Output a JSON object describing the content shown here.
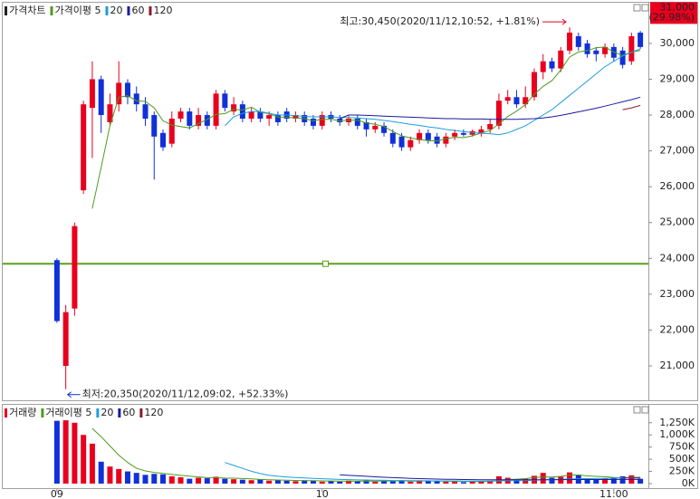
{
  "chart_data": [
    {
      "type": "candlestick",
      "title": "가격차트",
      "title_color": "#222222",
      "categories": [
        "09",
        null,
        null,
        null,
        null,
        null,
        null,
        null,
        null,
        null,
        null,
        null,
        null,
        null,
        null,
        null,
        null,
        null,
        null,
        null,
        null,
        null,
        null,
        null,
        null,
        null,
        null,
        null,
        null,
        null,
        "10",
        null,
        null,
        null,
        null,
        null,
        null,
        null,
        null,
        null,
        null,
        null,
        null,
        null,
        null,
        null,
        null,
        null,
        null,
        null,
        null,
        null,
        null,
        null,
        null,
        null,
        null,
        null,
        null,
        null,
        null,
        null,
        null,
        "11:00",
        null,
        null,
        null
      ],
      "open": [
        23950,
        21000,
        22600,
        25900,
        28200,
        29000,
        27800,
        28300,
        28900,
        28600,
        28300,
        28000,
        27500,
        27200,
        27900,
        28100,
        27700,
        28000,
        27700,
        28600,
        28100,
        28300,
        27900,
        28100,
        27900,
        28000,
        28100,
        27900,
        28000,
        27900,
        27700,
        28000,
        27900,
        27800,
        27900,
        27800,
        27600,
        27700,
        27500,
        27400,
        27100,
        27300,
        27500,
        27400,
        27200,
        27400,
        27500,
        27450,
        27500,
        27600,
        27700,
        28400,
        28500,
        28300,
        28500,
        29200,
        29500,
        29300,
        29800,
        30200,
        30000,
        29800,
        29700,
        29900,
        29800,
        29500,
        30300
      ],
      "high": [
        24000,
        22700,
        25000,
        28400,
        29500,
        29100,
        28600,
        29500,
        29000,
        28800,
        28500,
        28100,
        27600,
        28100,
        28200,
        28200,
        28200,
        28100,
        28700,
        28700,
        28500,
        28400,
        28200,
        28200,
        28100,
        28100,
        28200,
        28100,
        28100,
        28000,
        28100,
        28100,
        28000,
        28000,
        28000,
        27900,
        27800,
        27800,
        27600,
        27500,
        27400,
        27600,
        27600,
        27500,
        27500,
        27600,
        27600,
        27600,
        27700,
        27900,
        28600,
        28700,
        28700,
        28800,
        29300,
        29700,
        29600,
        29900,
        30450,
        30300,
        30100,
        29900,
        30000,
        30000,
        29900,
        30300,
        30350
      ],
      "low": [
        22200,
        20350,
        22400,
        25800,
        26800,
        27500,
        27700,
        28100,
        28300,
        28100,
        27700,
        26200,
        27000,
        27100,
        27800,
        27600,
        27600,
        27600,
        27600,
        28100,
        28000,
        27800,
        27800,
        27800,
        27700,
        27700,
        27800,
        27800,
        27700,
        27600,
        27600,
        27800,
        27700,
        27700,
        27600,
        27400,
        27500,
        27400,
        27100,
        27000,
        27000,
        27200,
        27200,
        27100,
        27100,
        27300,
        27400,
        27400,
        27400,
        27500,
        27600,
        28300,
        28200,
        28200,
        28400,
        29000,
        29200,
        29200,
        29700,
        29800,
        29600,
        29500,
        29600,
        29500,
        29300,
        29400,
        29850
      ],
      "close": [
        22250,
        22500,
        24900,
        28300,
        29000,
        28000,
        28300,
        28900,
        28500,
        28300,
        27900,
        27400,
        27100,
        27900,
        28100,
        27700,
        28000,
        27700,
        28600,
        28200,
        28300,
        27900,
        28100,
        27900,
        28000,
        27800,
        27900,
        28000,
        27800,
        27700,
        28000,
        27900,
        27800,
        27900,
        27700,
        27600,
        27700,
        27500,
        27200,
        27100,
        27300,
        27500,
        27300,
        27200,
        27400,
        27500,
        27450,
        27550,
        27600,
        27750,
        28400,
        28500,
        28300,
        28500,
        29200,
        29500,
        29300,
        29800,
        30300,
        29900,
        29700,
        29700,
        29900,
        29600,
        29400,
        30200,
        29900
      ],
      "up_color": "#e8001e",
      "down_color": "#1030d8",
      "ylim": [
        20090,
        31110
      ],
      "yticks": [
        {
          "value": 21000,
          "label": "21,000"
        },
        {
          "value": 22000,
          "label": "22,000"
        },
        {
          "value": 23000,
          "label": "23,000"
        },
        {
          "value": 24000,
          "label": "24,000"
        },
        {
          "value": 25000,
          "label": "25,000"
        },
        {
          "value": 26000,
          "label": "26,000"
        },
        {
          "value": 27000,
          "label": "27,000"
        },
        {
          "value": 28000,
          "label": "28,000"
        },
        {
          "value": 29000,
          "label": "29,000"
        },
        {
          "value": 30000,
          "label": "30,000"
        }
      ],
      "series": [
        {
          "name": "가격이평 5",
          "color": "#4f9a1c",
          "values": [
            null,
            null,
            null,
            null,
            25390,
            26540,
            27700,
            28500,
            28540,
            28400,
            28380,
            28200,
            27840,
            27720,
            27680,
            27640,
            27760,
            27880,
            28020,
            28040,
            28160,
            28140,
            28220,
            28080,
            28040,
            27940,
            27940,
            27920,
            27900,
            27840,
            27880,
            27880,
            27840,
            27860,
            27860,
            27780,
            27740,
            27680,
            27540,
            27420,
            27360,
            27320,
            27280,
            27280,
            27340,
            27380,
            27370,
            27420,
            27500,
            27570,
            27750,
            27960,
            28110,
            28290,
            28580,
            28800,
            28960,
            29260,
            29620,
            29760,
            29800,
            29880,
            29900,
            29760,
            29660,
            29760,
            29800
          ]
        },
        {
          "name": "20",
          "color": "#1e9de0",
          "values": [
            null,
            null,
            null,
            null,
            null,
            null,
            null,
            null,
            null,
            null,
            null,
            null,
            null,
            null,
            null,
            null,
            null,
            null,
            null,
            27700,
            27950,
            28050,
            28100,
            28100,
            28050,
            28000,
            28000,
            27980,
            27960,
            27950,
            27950,
            27950,
            27930,
            27930,
            27920,
            27900,
            27880,
            27850,
            27820,
            27780,
            27740,
            27710,
            27670,
            27640,
            27600,
            27570,
            27540,
            27510,
            27490,
            27480,
            27450,
            27500,
            27600,
            27700,
            27850,
            28000,
            28150,
            28350,
            28550,
            28750,
            28950,
            29150,
            29350,
            29500,
            29650,
            29750,
            29850
          ]
        },
        {
          "name": "60",
          "color": "#1a1a9e",
          "values": [
            null,
            null,
            null,
            null,
            null,
            null,
            null,
            null,
            null,
            null,
            null,
            null,
            null,
            null,
            null,
            null,
            null,
            null,
            null,
            null,
            null,
            null,
            null,
            null,
            null,
            null,
            null,
            null,
            null,
            null,
            null,
            null,
            27900,
            28000,
            28000,
            27990,
            27980,
            27970,
            27960,
            27950,
            27940,
            27930,
            27920,
            27910,
            27900,
            27900,
            27890,
            27890,
            27890,
            27880,
            27880,
            27880,
            27880,
            27890,
            27900,
            27920,
            27950,
            27990,
            28040,
            28090,
            28140,
            28190,
            28250,
            28310,
            28370,
            28430,
            28500
          ]
        },
        {
          "name": "120",
          "color": "#8b1a2a",
          "values": [
            null,
            null,
            null,
            null,
            null,
            null,
            null,
            null,
            null,
            null,
            null,
            null,
            null,
            null,
            null,
            null,
            null,
            null,
            null,
            null,
            null,
            null,
            null,
            null,
            null,
            null,
            null,
            null,
            null,
            null,
            null,
            null,
            null,
            null,
            null,
            null,
            null,
            null,
            null,
            null,
            null,
            null,
            null,
            null,
            null,
            null,
            null,
            null,
            null,
            null,
            null,
            null,
            null,
            null,
            null,
            null,
            null,
            null,
            null,
            null,
            null,
            null,
            null,
            null,
            28150,
            28200,
            28270
          ]
        }
      ],
      "reference_line": {
        "value": 23850,
        "color": "#5aa01e"
      },
      "upper_limit": {
        "value": 31000,
        "label": "31,000",
        "note": "(29.98%)",
        "color": "#e8001e"
      },
      "annotations": {
        "high": "최고:30,450(2020/11/12,10:52, +1.81%)",
        "low": "최저:20,350(2020/11/12,09:02, +52.33%)",
        "high_color": "#e8001e",
        "low_color": "#1030d8"
      }
    },
    {
      "type": "bar",
      "title": "거래량",
      "title_color": "#e8001e",
      "values": [
        1290000,
        1300000,
        1250000,
        1000000,
        820000,
        450000,
        350000,
        300000,
        250000,
        220000,
        180000,
        200000,
        190000,
        150000,
        130000,
        100000,
        120000,
        110000,
        140000,
        100000,
        90000,
        80000,
        70000,
        90000,
        60000,
        70000,
        60000,
        50000,
        70000,
        60000,
        40000,
        50000,
        40000,
        60000,
        50000,
        70000,
        40000,
        50000,
        60000,
        70000,
        40000,
        50000,
        60000,
        50000,
        40000,
        50000,
        30000,
        40000,
        50000,
        60000,
        150000,
        120000,
        80000,
        100000,
        160000,
        220000,
        120000,
        140000,
        230000,
        180000,
        100000,
        90000,
        110000,
        120000,
        150000,
        170000,
        100000
      ],
      "ylim": [
        0,
        1525000
      ],
      "yticks": [
        {
          "value": 0,
          "label": "0K"
        },
        {
          "value": 250000,
          "label": "250K"
        },
        {
          "value": 500000,
          "label": "500K"
        },
        {
          "value": 750000,
          "label": "750K"
        },
        {
          "value": 1000000,
          "label": "1,000K"
        },
        {
          "value": 1250000,
          "label": "1,250K"
        }
      ],
      "series": [
        {
          "name": "거래이평 5",
          "color": "#4f9a1c",
          "values": [
            null,
            null,
            null,
            null,
            1132000,
            964000,
            774000,
            584000,
            434000,
            314000,
            260000,
            230000,
            208000,
            188000,
            170000,
            154000,
            138000,
            122000,
            120000,
            114000,
            112000,
            104000,
            98000,
            86000,
            78000,
            74000,
            70000,
            66000,
            62000,
            62000,
            56000,
            54000,
            52000,
            50000,
            48000,
            54000,
            52000,
            54000,
            54000,
            58000,
            52000,
            54000,
            56000,
            54000,
            48000,
            50000,
            46000,
            42000,
            42000,
            46000,
            66000,
            84000,
            92000,
            102000,
            122000,
            136000,
            136000,
            148000,
            174000,
            178000,
            158000,
            148000,
            142000,
            126000,
            114000,
            128000,
            130000
          ]
        },
        {
          "name": "20",
          "color": "#1e9de0",
          "values": [
            null,
            null,
            null,
            null,
            null,
            null,
            null,
            null,
            null,
            null,
            null,
            null,
            null,
            null,
            null,
            null,
            null,
            null,
            null,
            433000,
            373000,
            312000,
            253000,
            207000,
            169000,
            150000,
            136000,
            124000,
            115000,
            107000,
            100000,
            93000,
            86000,
            81000,
            77000,
            75000,
            71000,
            68000,
            64000,
            63000,
            60000,
            59000,
            58000,
            56000,
            55000,
            54000,
            52000,
            52000,
            51000,
            51000,
            56000,
            60000,
            62000,
            64000,
            70000,
            78000,
            81000,
            86000,
            94000,
            100000,
            103000,
            105000,
            108000,
            111000,
            116000,
            122000,
            125000
          ]
        },
        {
          "name": "60",
          "color": "#1a1a9e",
          "values": [
            null,
            null,
            null,
            null,
            null,
            null,
            null,
            null,
            null,
            null,
            null,
            null,
            null,
            null,
            null,
            null,
            null,
            null,
            null,
            null,
            null,
            null,
            null,
            null,
            null,
            null,
            null,
            null,
            null,
            null,
            null,
            null,
            180000,
            170000,
            160000,
            150000,
            140000,
            130000,
            122000,
            115000,
            108000,
            102000,
            97000,
            93000,
            90000,
            87000,
            84000,
            82000,
            80000,
            79000,
            79000,
            79000,
            78000,
            78000,
            79000,
            80000,
            80000,
            81000,
            82000,
            83000,
            83000,
            84000,
            84000,
            85000,
            85000,
            86000,
            86000
          ]
        },
        {
          "name": "120",
          "color": "#8b1a2a",
          "values": [
            null,
            null,
            null,
            null,
            null,
            null,
            null,
            null,
            null,
            null,
            null,
            null,
            null,
            null,
            null,
            null,
            null,
            null,
            null,
            null,
            null,
            null,
            null,
            null,
            null,
            null,
            null,
            null,
            null,
            null,
            null,
            null,
            null,
            null,
            null,
            null,
            null,
            null,
            null,
            null,
            null,
            null,
            null,
            null,
            null,
            null,
            null,
            null,
            null,
            null,
            null,
            null,
            null,
            null,
            null,
            null,
            null,
            null,
            null,
            null,
            null,
            null,
            null,
            null,
            120000,
            118000,
            116000
          ]
        }
      ]
    }
  ]
}
